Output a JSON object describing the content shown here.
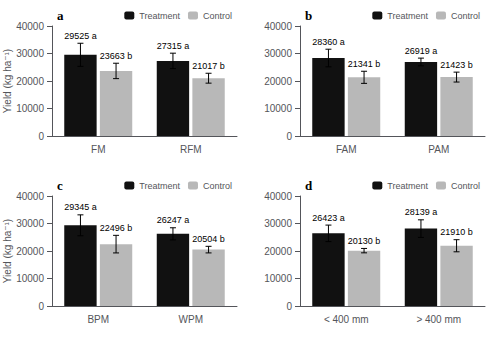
{
  "chart_data": [
    {
      "type": "bar",
      "title": "a",
      "categories": [
        "FM",
        "RFM"
      ],
      "series": [
        {
          "name": "Treatment",
          "color": "#111111",
          "values": [
            29525,
            27315
          ],
          "errors": [
            4200,
            2800
          ],
          "value_labels": [
            "29525 a",
            "27315 a"
          ]
        },
        {
          "name": "Control",
          "color": "#b8b8b8",
          "values": [
            23663,
            21017
          ],
          "errors": [
            2800,
            1800
          ],
          "value_labels": [
            "23663 b",
            "21017 b"
          ]
        }
      ],
      "ylabel": "Yield (kg ha⁻¹)",
      "ylim": [
        0,
        40000
      ],
      "yticks": [
        0,
        10000,
        20000,
        30000,
        40000
      ],
      "grid": false,
      "legend": "upper right",
      "data_labels": true
    },
    {
      "type": "bar",
      "title": "b",
      "categories": [
        "FAM",
        "PAM"
      ],
      "series": [
        {
          "name": "Treatment",
          "color": "#111111",
          "values": [
            28360,
            26919
          ],
          "errors": [
            3200,
            1400
          ],
          "value_labels": [
            "28360 a",
            "26919 a"
          ]
        },
        {
          "name": "Control",
          "color": "#b8b8b8",
          "values": [
            21341,
            21423
          ],
          "errors": [
            2200,
            1800
          ],
          "value_labels": [
            "21341 b",
            "21423 b"
          ]
        }
      ],
      "ylim": [
        0,
        40000
      ],
      "yticks": [
        0,
        10000,
        20000,
        30000,
        40000
      ],
      "grid": false,
      "legend": "upper right",
      "data_labels": true
    },
    {
      "type": "bar",
      "title": "c",
      "categories": [
        "BPM",
        "WPM"
      ],
      "series": [
        {
          "name": "Treatment",
          "color": "#111111",
          "values": [
            29345,
            26247
          ],
          "errors": [
            3800,
            2200
          ],
          "value_labels": [
            "29345 a",
            "26247 a"
          ]
        },
        {
          "name": "Control",
          "color": "#b8b8b8",
          "values": [
            22496,
            20504
          ],
          "errors": [
            3200,
            1200
          ],
          "value_labels": [
            "22496 b",
            "20504 b"
          ]
        }
      ],
      "ylabel": "Yield (kg ha⁻¹)",
      "ylim": [
        0,
        40000
      ],
      "yticks": [
        0,
        10000,
        20000,
        30000,
        40000
      ],
      "grid": false,
      "legend": "upper right",
      "data_labels": true
    },
    {
      "type": "bar",
      "title": "d",
      "categories": [
        "< 400 mm",
        "> 400 mm"
      ],
      "series": [
        {
          "name": "Treatment",
          "color": "#111111",
          "values": [
            26423,
            28139
          ],
          "errors": [
            3000,
            3200
          ],
          "value_labels": [
            "26423 a",
            "28139 a"
          ]
        },
        {
          "name": "Control",
          "color": "#b8b8b8",
          "values": [
            20130,
            21910
          ],
          "errors": [
            800,
            2200
          ],
          "value_labels": [
            "20130 b",
            "21910 b"
          ]
        }
      ],
      "ylim": [
        0,
        40000
      ],
      "yticks": [
        0,
        10000,
        20000,
        30000,
        40000
      ],
      "grid": false,
      "legend": "upper right",
      "data_labels": true
    }
  ]
}
